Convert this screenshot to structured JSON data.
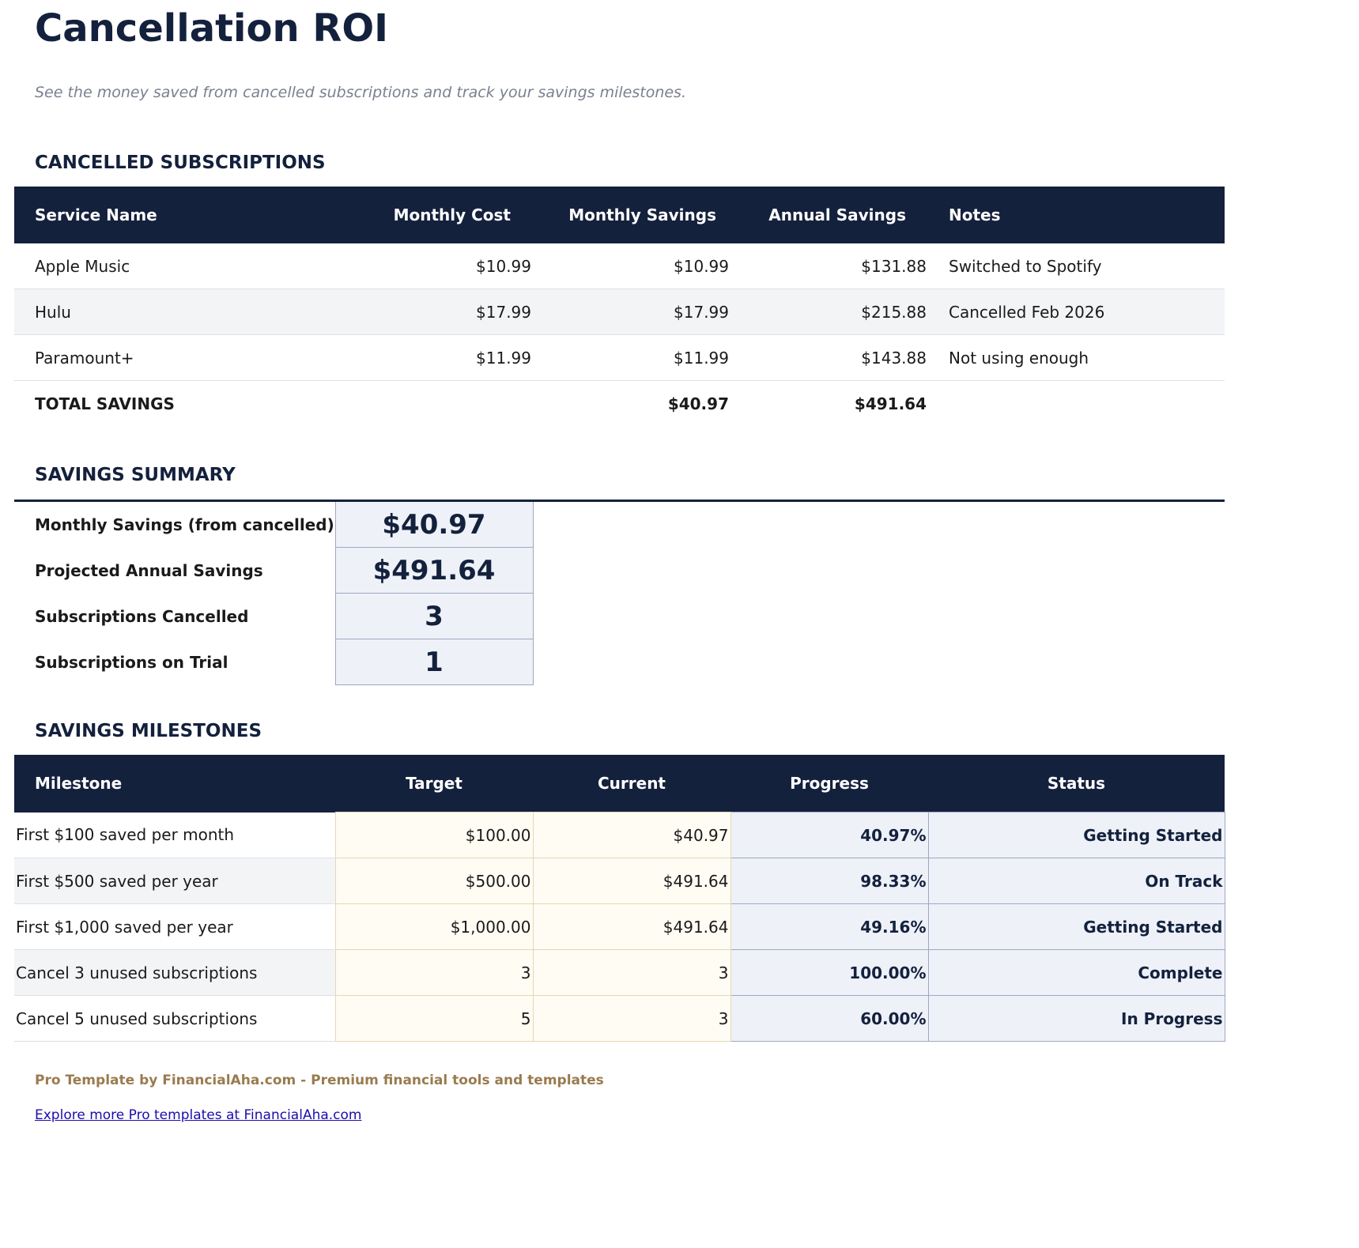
{
  "title": "Cancellation ROI",
  "subtitle": "See the money saved from cancelled subscriptions and track your savings milestones.",
  "cancelled": {
    "heading": "CANCELLED SUBSCRIPTIONS",
    "columns": [
      "Service Name",
      "Monthly Cost",
      "Monthly Savings",
      "Annual Savings",
      "Notes"
    ],
    "rows": [
      [
        "Apple Music",
        "$10.99",
        "$10.99",
        "$131.88",
        "Switched to Spotify"
      ],
      [
        "Hulu",
        "$17.99",
        "$17.99",
        "$215.88",
        "Cancelled Feb 2026"
      ],
      [
        "Paramount+",
        "$11.99",
        "$11.99",
        "$143.88",
        "Not using enough"
      ]
    ],
    "total": {
      "label": "TOTAL SAVINGS",
      "monthly": "$40.97",
      "annual": "$491.64"
    }
  },
  "summary": {
    "heading": "SAVINGS SUMMARY",
    "rows": [
      {
        "label": "Monthly Savings (from cancelled)",
        "value": "$40.97"
      },
      {
        "label": "Projected Annual Savings",
        "value": "$491.64"
      },
      {
        "label": "Subscriptions Cancelled",
        "value": "3"
      },
      {
        "label": "Subscriptions on Trial",
        "value": "1"
      }
    ]
  },
  "milestones": {
    "heading": "SAVINGS MILESTONES",
    "columns": [
      "Milestone",
      "Target",
      "Current",
      "Progress",
      "Status"
    ],
    "rows": [
      [
        "First $100 saved per month",
        "$100.00",
        "$40.97",
        "40.97%",
        "Getting Started"
      ],
      [
        "First $500 saved per year",
        "$500.00",
        "$491.64",
        "98.33%",
        "On Track"
      ],
      [
        "First $1,000 saved per year",
        "$1,000.00",
        "$491.64",
        "49.16%",
        "Getting Started"
      ],
      [
        "Cancel 3 unused subscriptions",
        "3",
        "3",
        "100.00%",
        "Complete"
      ],
      [
        "Cancel 5 unused subscriptions",
        "5",
        "3",
        "60.00%",
        "In Progress"
      ]
    ]
  },
  "footer": {
    "credit": "Pro Template by FinancialAha.com - Premium financial tools and templates",
    "link": "Explore more Pro templates at FinancialAha.com"
  }
}
